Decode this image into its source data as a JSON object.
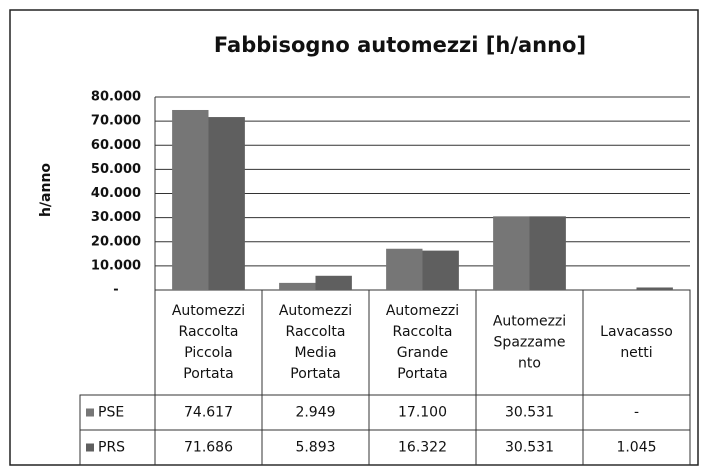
{
  "chart_data": {
    "type": "bar",
    "title": "Fabbisogno automezzi [h/anno]",
    "y_label": "h/anno",
    "categories": [
      [
        "Automezzi",
        "Raccolta",
        "Piccola",
        "Portata"
      ],
      [
        "Automezzi",
        "Raccolta",
        "Media",
        "Portata"
      ],
      [
        "Automezzi",
        "Raccolta",
        "Grande",
        "Portata"
      ],
      [
        "Automezzi",
        "Spazzame",
        "nto"
      ],
      [
        "Lavacasso",
        "netti"
      ]
    ],
    "series": [
      {
        "name": "PSE",
        "color": "#767676",
        "values": [
          74617,
          2949,
          17100,
          30531,
          null
        ],
        "value_labels": [
          "74.617",
          "2.949",
          "17.100",
          "30.531",
          "-"
        ]
      },
      {
        "name": "PRS",
        "color": "#5f5f5f",
        "values": [
          71686,
          5893,
          16322,
          30531,
          1045
        ],
        "value_labels": [
          "71.686",
          "5.893",
          "16.322",
          "30.531",
          "1.045"
        ]
      }
    ],
    "ylim": [
      0,
      80000
    ],
    "yticks": [
      {
        "value": 0,
        "label": "-"
      },
      {
        "value": 10000,
        "label": "10.000"
      },
      {
        "value": 20000,
        "label": "20.000"
      },
      {
        "value": 30000,
        "label": "30.000"
      },
      {
        "value": 40000,
        "label": "40.000"
      },
      {
        "value": 50000,
        "label": "50.000"
      },
      {
        "value": 60000,
        "label": "60.000"
      },
      {
        "value": 70000,
        "label": "70.000"
      },
      {
        "value": 80000,
        "label": "80.000"
      }
    ],
    "grid": true
  }
}
